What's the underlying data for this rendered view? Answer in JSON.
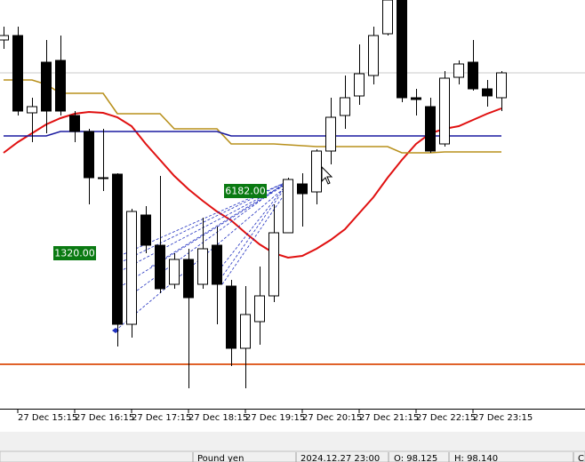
{
  "chart_data": {
    "type": "candlestick",
    "categories": [
      null,
      "27 Dec 15:15",
      null,
      null,
      null,
      "27 Dec 16:15",
      null,
      null,
      null,
      "27 Dec 17:15",
      null,
      null,
      null,
      "27 Dec 18:15",
      null,
      null,
      null,
      "27 Dec 19:15",
      null,
      null,
      null,
      "27 Dec 20:15",
      null,
      null,
      null,
      "27 Dec 21:15",
      null,
      null,
      null,
      "27 Dec 22:15",
      null,
      null,
      null,
      "27 Dec 23:15",
      null,
      null
    ],
    "ohlc": [
      [
        98.1575,
        98.165,
        98.1525,
        98.16
      ],
      [
        98.16,
        98.165,
        98.115,
        98.1175
      ],
      [
        98.1165,
        98.125,
        98.1,
        98.12
      ],
      [
        98.145,
        98.1575,
        98.105,
        98.1175
      ],
      [
        98.146,
        98.16,
        98.115,
        98.1175
      ],
      [
        98.115,
        98.1175,
        98.1,
        98.106
      ],
      [
        98.106,
        98.1075,
        98.065,
        98.08
      ],
      [
        98.08,
        98.1075,
        98.0725,
        98.08
      ],
      [
        98.082,
        98.0825,
        97.985,
        97.9975
      ],
      [
        97.9975,
        98.0625,
        97.99,
        98.061
      ],
      [
        98.059,
        98.064,
        98.0375,
        98.042
      ],
      [
        98.042,
        98.081,
        98.015,
        98.0175
      ],
      [
        98.02,
        98.0375,
        98.0175,
        98.034
      ],
      [
        98.034,
        98.04,
        97.9615,
        98.0125
      ],
      [
        98.02,
        98.0575,
        98.0175,
        98.04
      ],
      [
        98.042,
        98.0525,
        97.9975,
        98.02
      ],
      [
        98.019,
        98.0225,
        97.974,
        97.984
      ],
      [
        97.984,
        98.019,
        97.9615,
        98.003
      ],
      [
        97.999,
        98.03,
        97.986,
        98.0135
      ],
      [
        98.0135,
        98.065,
        98.01,
        98.049
      ],
      [
        98.049,
        98.08,
        98.049,
        98.079
      ],
      [
        98.0765,
        98.0825,
        98.0525,
        98.071
      ],
      [
        98.072,
        98.096,
        98.065,
        98.095
      ],
      [
        98.095,
        98.125,
        98.0875,
        98.114
      ],
      [
        98.115,
        98.1375,
        98.1075,
        98.125
      ],
      [
        98.126,
        98.155,
        98.121,
        98.1385
      ],
      [
        98.1375,
        98.165,
        98.1325,
        98.16
      ],
      [
        98.161,
        98.18,
        98.16,
        98.18
      ],
      [
        98.18,
        98.18,
        98.1225,
        98.125
      ],
      [
        98.125,
        98.13,
        98.115,
        98.124
      ],
      [
        98.12,
        98.125,
        98.094,
        98.095
      ],
      [
        98.099,
        98.14,
        98.0975,
        98.136
      ],
      [
        98.1365,
        98.146,
        98.1325,
        98.144
      ],
      [
        98.145,
        98.1575,
        98.129,
        98.13
      ],
      [
        98.13,
        98.135,
        98.12,
        98.126
      ],
      [
        98.125,
        98.14,
        98.1175,
        98.139
      ]
    ],
    "up_color": "#ffffff",
    "down_color": "#000000",
    "outline_color": "#000000",
    "series": [
      {
        "color": "#e01010",
        "values": [
          98.094,
          98.1,
          98.105,
          98.11,
          98.1135,
          98.116,
          98.117,
          98.1165,
          98.114,
          98.109,
          98.099,
          98.09,
          98.081,
          98.0735,
          98.067,
          98.061,
          98.056,
          98.049,
          98.0425,
          98.0375,
          98.035,
          98.036,
          98.04,
          98.045,
          98.051,
          98.06,
          98.069,
          98.08,
          98.09,
          98.099,
          98.105,
          98.1075,
          98.109,
          98.1125,
          98.116,
          98.119
        ]
      },
      {
        "color": "#b8901c",
        "values": [
          98.135,
          98.135,
          98.135,
          98.1325,
          98.1275,
          98.1275,
          98.1275,
          98.1275,
          98.116,
          98.116,
          98.116,
          98.116,
          98.1075,
          98.1075,
          98.1075,
          98.1075,
          98.099,
          98.099,
          98.099,
          98.099,
          98.0985,
          98.098,
          98.0975,
          98.0975,
          98.0975,
          98.0975,
          98.0975,
          98.0975,
          98.094,
          98.094,
          98.094,
          98.0945,
          98.0945,
          98.0945,
          98.0945,
          98.0945
        ]
      },
      {
        "color": "#1a1aa0",
        "values": [
          98.1035,
          98.1035,
          98.1035,
          98.1035,
          98.106,
          98.106,
          98.106,
          98.106,
          98.106,
          98.106,
          98.106,
          98.106,
          98.106,
          98.106,
          98.106,
          98.106,
          98.1035,
          98.1035,
          98.1035,
          98.1035,
          98.1035,
          98.1035,
          98.1035,
          98.1035,
          98.1035,
          98.1035,
          98.1035,
          98.1035,
          98.1035,
          98.1035,
          98.1035,
          98.1035,
          98.1035,
          98.1035,
          98.1035,
          98.1035
        ]
      }
    ],
    "levels": [
      {
        "value": 97.975,
        "color": "#e0622a"
      },
      {
        "value": 98.139,
        "color": "#c8c8c8"
      }
    ],
    "annotations": [
      "6182.00",
      "1320.00"
    ],
    "ylim": [
      97.95,
      98.18
    ]
  },
  "status_bar": {
    "symbol": "Pound yen",
    "time": "2024.12.27 23:00",
    "open": "O: 98.125",
    "high": "H: 98.140",
    "close": "C"
  }
}
